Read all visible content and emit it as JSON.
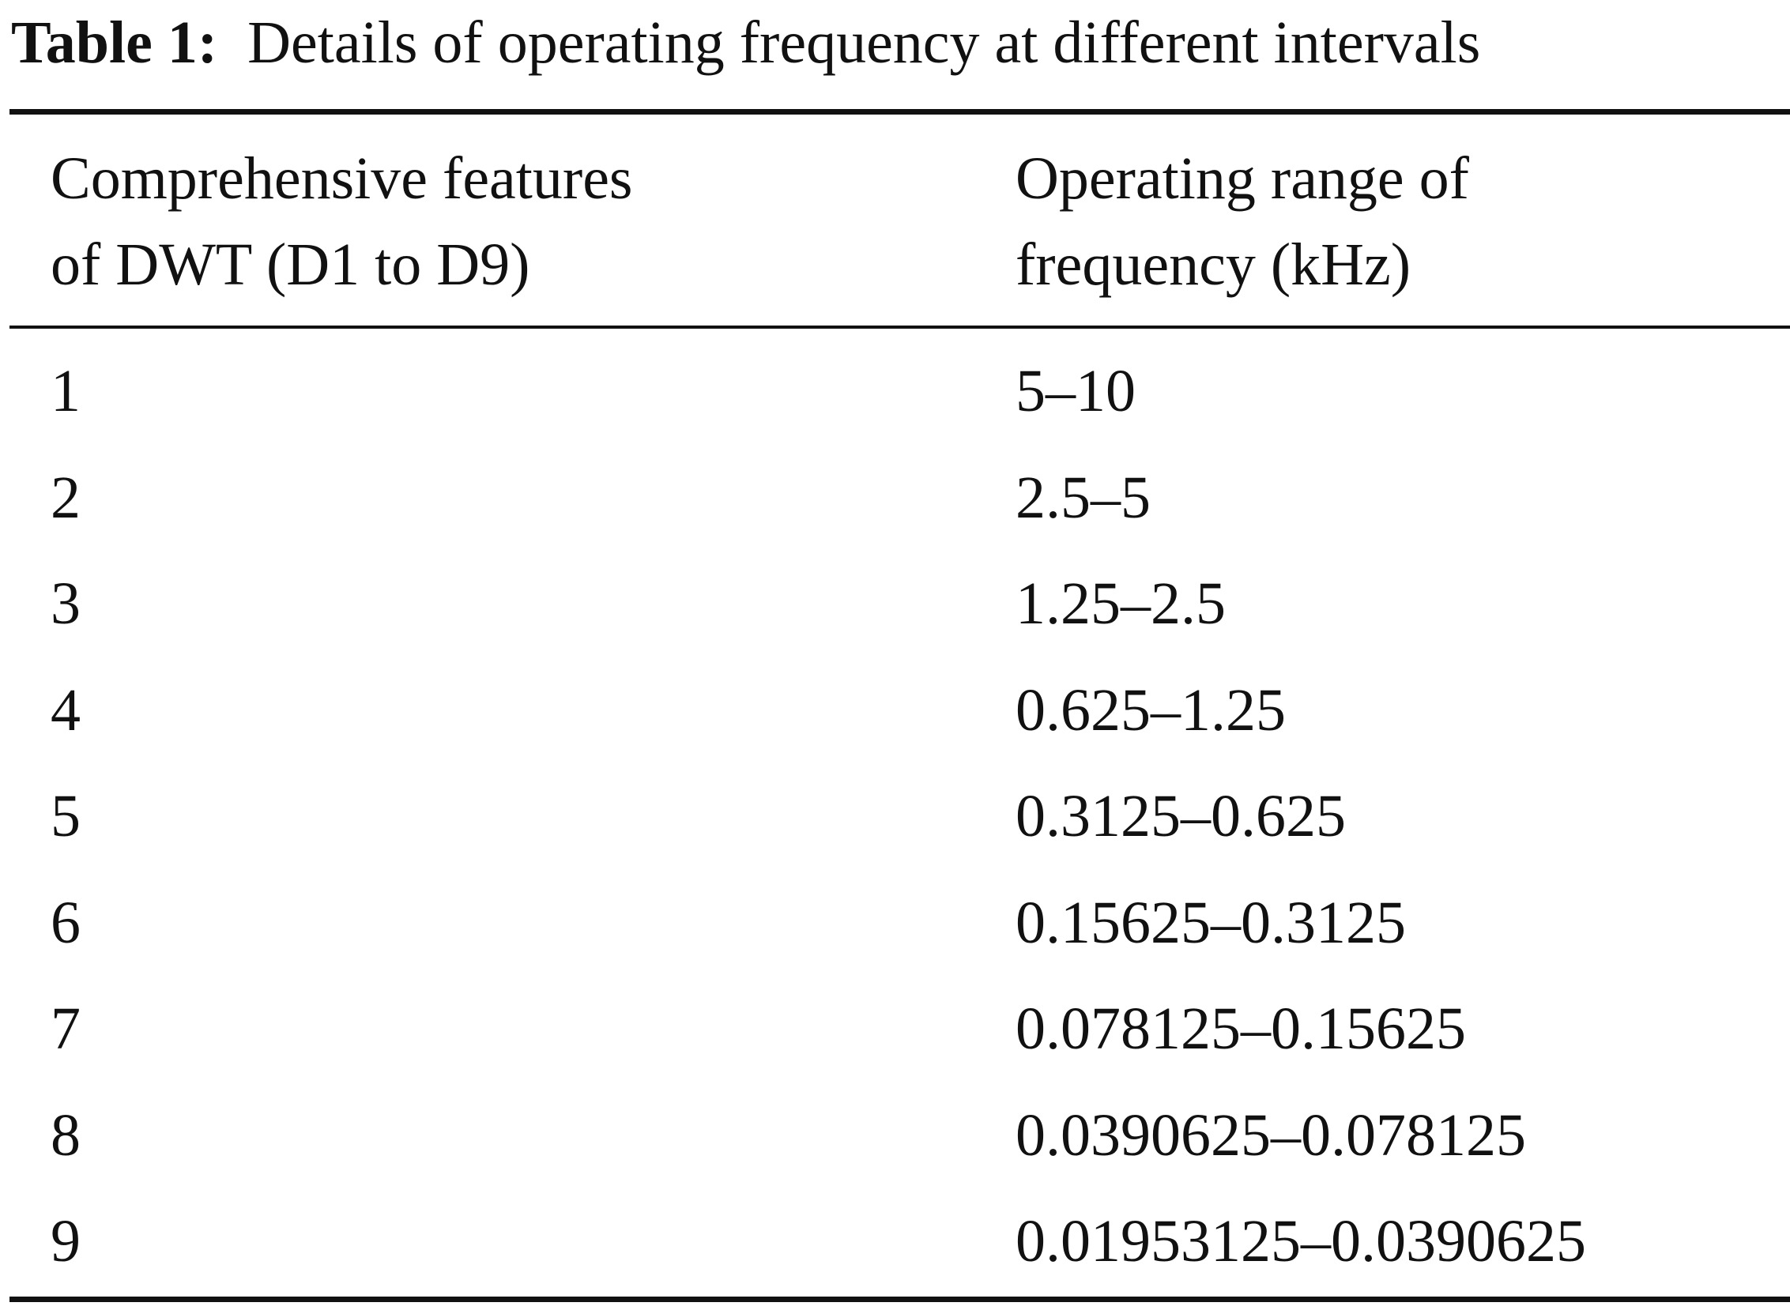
{
  "caption": {
    "label": "Table 1:",
    "text": "Details of operating frequency at different intervals"
  },
  "table": {
    "headers": [
      [
        "Comprehensive features",
        "of DWT (D1 to D9)"
      ],
      [
        "Operating range of",
        "frequency (kHz)"
      ]
    ],
    "rows": [
      [
        "1",
        "5–10"
      ],
      [
        "2",
        "2.5–5"
      ],
      [
        "3",
        "1.25–2.5"
      ],
      [
        "4",
        "0.625–1.25"
      ],
      [
        "5",
        "0.3125–0.625"
      ],
      [
        "6",
        "0.15625–0.3125"
      ],
      [
        "7",
        "0.078125–0.15625"
      ],
      [
        "8",
        "0.0390625–0.078125"
      ],
      [
        "9",
        "0.01953125–0.0390625"
      ]
    ]
  }
}
